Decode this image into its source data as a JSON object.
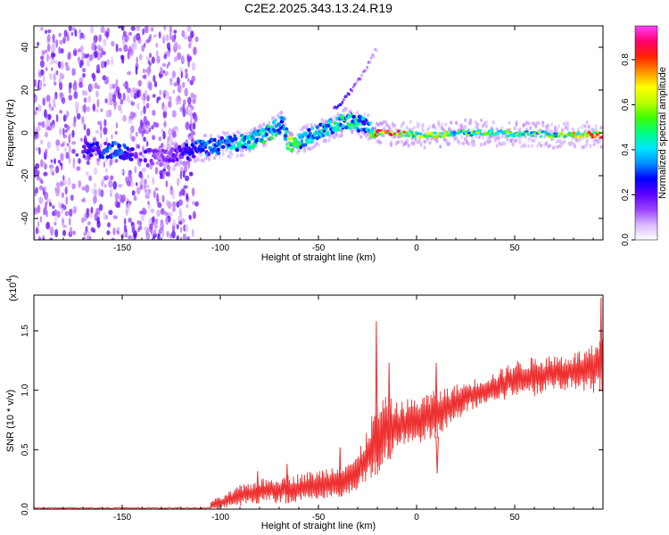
{
  "title": "C2E2.2025.343.13.24.R19",
  "chart_data": [
    {
      "type": "heatmap",
      "name": "spectrogram",
      "xlabel": "Height of straight line (km)",
      "ylabel": "Frequency (Hz)",
      "xlim": [
        -195,
        95
      ],
      "ylim": [
        -50,
        50
      ],
      "xticks": [
        -150,
        -100,
        -50,
        0,
        50
      ],
      "xtick_labels": [
        "-150",
        "-100",
        "-50",
        "0",
        "50"
      ],
      "yticks": [
        -40,
        -20,
        0,
        20,
        40
      ],
      "ytick_labels": [
        "-40",
        "-20",
        "0",
        "20",
        "40"
      ],
      "colorbar": {
        "label": "Normalized spectral amplitude",
        "range": [
          0,
          0.95
        ],
        "ticks": [
          0.0,
          0.2,
          0.4,
          0.6,
          0.8
        ],
        "tick_labels": [
          "0.0",
          "0.2",
          "0.4",
          "0.6",
          "0.8"
        ],
        "colors": [
          "#ffffff",
          "#d9b8ff",
          "#9a40ff",
          "#5a00ff",
          "#0000ff",
          "#0090ff",
          "#00e8ff",
          "#00ff80",
          "#40ff00",
          "#c0ff00",
          "#ffff00",
          "#ff9000",
          "#ff2000",
          "#ff0070",
          "#ff40ff"
        ]
      },
      "ridge": [
        {
          "x": -165,
          "freq": -8,
          "amp": 0.25
        },
        {
          "x": -155,
          "freq": -8,
          "amp": 0.35
        },
        {
          "x": -130,
          "freq": -12,
          "amp": 0.15
        },
        {
          "x": -115,
          "freq": -8,
          "amp": 0.3
        },
        {
          "x": -100,
          "freq": -6,
          "amp": 0.4
        },
        {
          "x": -85,
          "freq": -4,
          "amp": 0.45
        },
        {
          "x": -75,
          "freq": 0,
          "amp": 0.5
        },
        {
          "x": -68,
          "freq": 5,
          "amp": 0.4
        },
        {
          "x": -65,
          "freq": -6,
          "amp": 0.6
        },
        {
          "x": -55,
          "freq": -2,
          "amp": 0.4
        },
        {
          "x": -45,
          "freq": 2,
          "amp": 0.45
        },
        {
          "x": -35,
          "freq": 6,
          "amp": 0.5
        },
        {
          "x": -25,
          "freq": 3,
          "amp": 0.4
        },
        {
          "x": -20,
          "freq": 0,
          "amp": 0.85
        },
        {
          "x": -10,
          "freq": 0,
          "amp": 0.85
        },
        {
          "x": 0,
          "freq": -1,
          "amp": 0.55
        },
        {
          "x": 10,
          "freq": -1,
          "amp": 0.75
        },
        {
          "x": 20,
          "freq": 0,
          "amp": 0.5
        },
        {
          "x": 30,
          "freq": 0,
          "amp": 0.55
        },
        {
          "x": 40,
          "freq": 0,
          "amp": 0.6
        },
        {
          "x": 50,
          "freq": -0.5,
          "amp": 0.55
        },
        {
          "x": 60,
          "freq": -0.5,
          "amp": 0.6
        },
        {
          "x": 70,
          "freq": -1,
          "amp": 0.55
        },
        {
          "x": 80,
          "freq": -1,
          "amp": 0.7
        },
        {
          "x": 90,
          "freq": -1,
          "amp": 0.85
        }
      ],
      "branch": [
        {
          "x": -40,
          "freq": 12,
          "amp": 0.25
        },
        {
          "x": -35,
          "freq": 18,
          "amp": 0.2
        },
        {
          "x": -30,
          "freq": 24,
          "amp": 0.15
        },
        {
          "x": -26,
          "freq": 30,
          "amp": 0.12
        },
        {
          "x": -22,
          "freq": 36,
          "amp": 0.1
        },
        {
          "x": -20,
          "freq": 40,
          "amp": 0.08
        }
      ],
      "noise_region_x": [
        -195,
        -120
      ]
    },
    {
      "type": "line",
      "name": "snr",
      "xlabel": "Height of straight line (km)",
      "ylabel": "SNR (10 * v/v)",
      "exponent_label": "(x10",
      "exponent_power": "4",
      "exponent_close": ")",
      "xlim": [
        -195,
        95
      ],
      "ylim": [
        0,
        1.8
      ],
      "xticks": [
        -150,
        -100,
        -50,
        0,
        50
      ],
      "xtick_labels": [
        "-150",
        "-100",
        "-50",
        "0",
        "50"
      ],
      "yticks": [
        0.0,
        0.5,
        1.0,
        1.5
      ],
      "ytick_labels": [
        "0.0",
        "0.5",
        "1.0",
        "1.5"
      ],
      "color": "#ee3030",
      "envelope": [
        {
          "x": -195,
          "lo": 0.0,
          "hi": 0.02
        },
        {
          "x": -150,
          "lo": 0.0,
          "hi": 0.02
        },
        {
          "x": -110,
          "lo": 0.0,
          "hi": 0.05
        },
        {
          "x": -100,
          "lo": 0.0,
          "hi": 0.1
        },
        {
          "x": -90,
          "lo": 0.02,
          "hi": 0.2
        },
        {
          "x": -80,
          "lo": 0.05,
          "hi": 0.25
        },
        {
          "x": -70,
          "lo": 0.05,
          "hi": 0.28
        },
        {
          "x": -60,
          "lo": 0.05,
          "hi": 0.3
        },
        {
          "x": -50,
          "lo": 0.08,
          "hi": 0.33
        },
        {
          "x": -40,
          "lo": 0.1,
          "hi": 0.38
        },
        {
          "x": -30,
          "lo": 0.15,
          "hi": 0.45
        },
        {
          "x": -25,
          "lo": 0.2,
          "hi": 0.7
        },
        {
          "x": -20,
          "lo": 0.3,
          "hi": 0.9
        },
        {
          "x": -15,
          "lo": 0.4,
          "hi": 0.95
        },
        {
          "x": -10,
          "lo": 0.5,
          "hi": 0.9
        },
        {
          "x": 0,
          "lo": 0.55,
          "hi": 0.95
        },
        {
          "x": 10,
          "lo": 0.6,
          "hi": 1.0
        },
        {
          "x": 20,
          "lo": 0.75,
          "hi": 1.05
        },
        {
          "x": 30,
          "lo": 0.85,
          "hi": 1.1
        },
        {
          "x": 40,
          "lo": 0.9,
          "hi": 1.15
        },
        {
          "x": 50,
          "lo": 0.95,
          "hi": 1.25
        },
        {
          "x": 60,
          "lo": 0.95,
          "hi": 1.28
        },
        {
          "x": 70,
          "lo": 0.98,
          "hi": 1.3
        },
        {
          "x": 80,
          "lo": 1.0,
          "hi": 1.32
        },
        {
          "x": 90,
          "lo": 0.95,
          "hi": 1.38
        },
        {
          "x": 95,
          "lo": 1.0,
          "hi": 1.45
        }
      ],
      "spikes": [
        {
          "x": -20.5,
          "y": 1.58
        },
        {
          "x": -14,
          "y": 1.23
        },
        {
          "x": 10,
          "y": 1.23
        },
        {
          "x": 10.5,
          "y": 0.3
        },
        {
          "x": 94,
          "y": 1.78
        },
        {
          "x": -81,
          "y": 0.32
        },
        {
          "x": -66,
          "y": 0.38
        },
        {
          "x": -39,
          "y": 0.52
        }
      ]
    }
  ]
}
